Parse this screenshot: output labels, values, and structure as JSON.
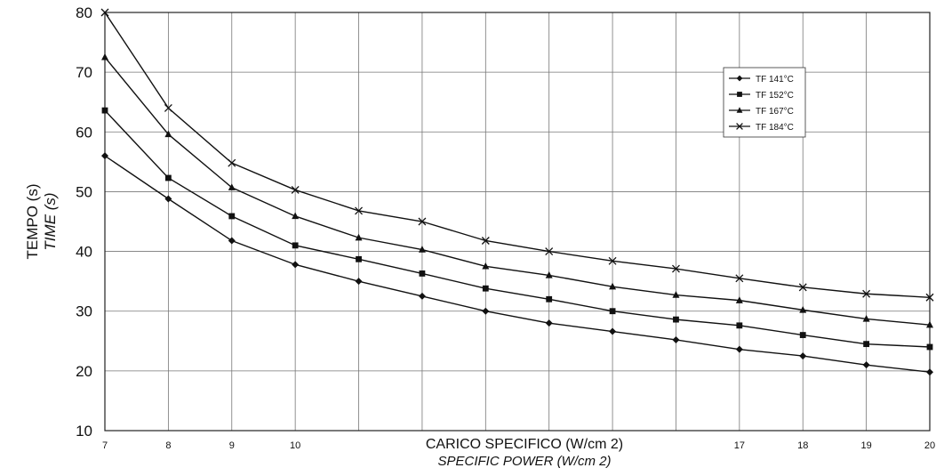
{
  "chart_data": {
    "type": "line",
    "title": "",
    "ylabel": "TEMPO (s)",
    "ylabel_en": "TIME (s)",
    "xlabel": "CARICO SPECIFICO (W/cm 2)",
    "xlabel_en": "SPECIFIC POWER (W/cm 2)",
    "xlim": [
      7,
      20
    ],
    "ylim": [
      10,
      80
    ],
    "x": [
      7,
      8,
      9,
      10,
      11,
      12,
      13,
      14,
      15,
      16,
      17,
      18,
      19,
      20
    ],
    "x_tick_labels": [
      "7",
      "8",
      "9",
      "10",
      "",
      "",
      "",
      "",
      "",
      "",
      "17",
      "18",
      "19",
      "20"
    ],
    "y_ticks": [
      10,
      20,
      30,
      40,
      50,
      60,
      70,
      80
    ],
    "grid": true,
    "legend_position": "top-right",
    "series": [
      {
        "name": "TF 141°C",
        "marker": "diamond",
        "values": [
          56,
          48.8,
          41.8,
          37.8,
          35,
          32.5,
          30,
          28,
          26.6,
          25.2,
          23.6,
          22.5,
          21,
          19.8
        ]
      },
      {
        "name": "TF 152°C",
        "marker": "square",
        "values": [
          63.6,
          52.3,
          45.9,
          41,
          38.7,
          36.3,
          33.8,
          32,
          30,
          28.6,
          27.6,
          26,
          24.5,
          24
        ]
      },
      {
        "name": "TF 167°C",
        "marker": "triangle",
        "values": [
          72.5,
          59.6,
          50.7,
          45.9,
          42.3,
          40.3,
          37.5,
          36,
          34.1,
          32.7,
          31.8,
          30.2,
          28.7,
          27.7
        ]
      },
      {
        "name": "TF 184°C",
        "marker": "x",
        "values": [
          80,
          64,
          54.8,
          50.3,
          46.8,
          45,
          41.8,
          40,
          38.4,
          37.1,
          35.5,
          34,
          32.9,
          32.3
        ]
      }
    ]
  }
}
